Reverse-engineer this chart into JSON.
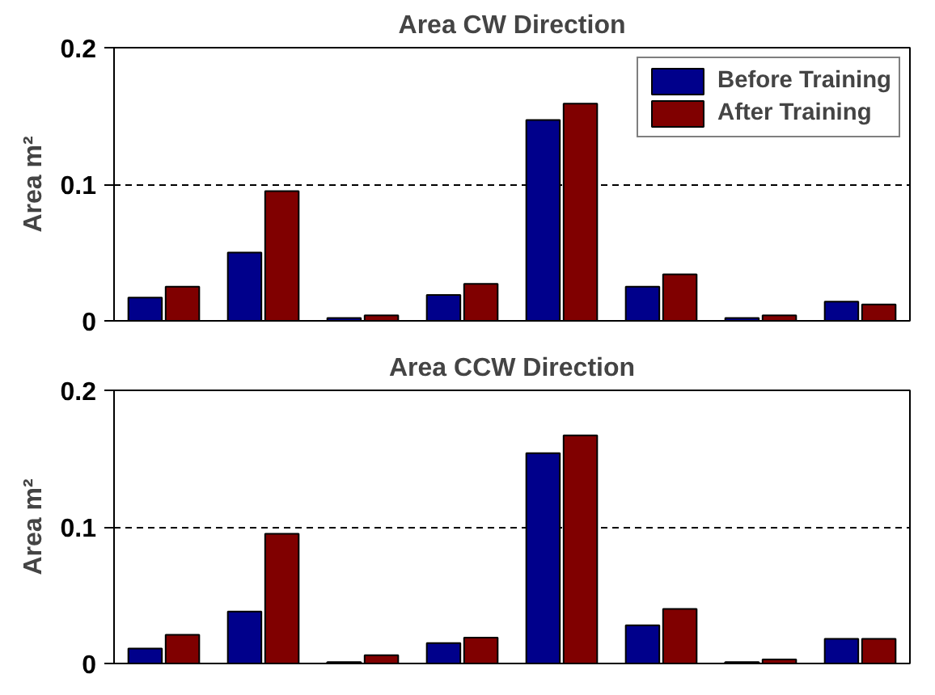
{
  "chart_data": [
    {
      "type": "bar",
      "title": "Area CW Direction",
      "ylabel": "Area m²",
      "categories": [
        null,
        null,
        null,
        null,
        null,
        null,
        null,
        null
      ],
      "series": [
        {
          "name": "Before Training",
          "color": "#00008b",
          "values": [
            0.017,
            0.05,
            0.002,
            0.019,
            0.147,
            0.025,
            0.002,
            0.014
          ]
        },
        {
          "name": "After Training",
          "color": "#800000",
          "values": [
            0.025,
            0.095,
            0.004,
            0.027,
            0.159,
            0.034,
            0.004,
            0.012
          ]
        }
      ],
      "ylim": [
        0,
        0.2
      ],
      "yticks": [
        0,
        0.1,
        0.2
      ],
      "grid": "y",
      "legend": "top right"
    },
    {
      "type": "bar",
      "title": "Area CCW Direction",
      "ylabel": "Area m²",
      "categories": [
        null,
        null,
        null,
        null,
        null,
        null,
        null,
        null
      ],
      "series": [
        {
          "color": "#00008b",
          "values": [
            0.011,
            0.038,
            0.001,
            0.015,
            0.154,
            0.028,
            0.001,
            0.018
          ]
        },
        {
          "color": "#800000",
          "values": [
            0.021,
            0.095,
            0.006,
            0.019,
            0.167,
            0.04,
            0.003,
            0.018
          ]
        }
      ],
      "ylim": [
        0,
        0.2
      ],
      "yticks": [
        0,
        0.1,
        0.2
      ],
      "grid": "y"
    }
  ]
}
